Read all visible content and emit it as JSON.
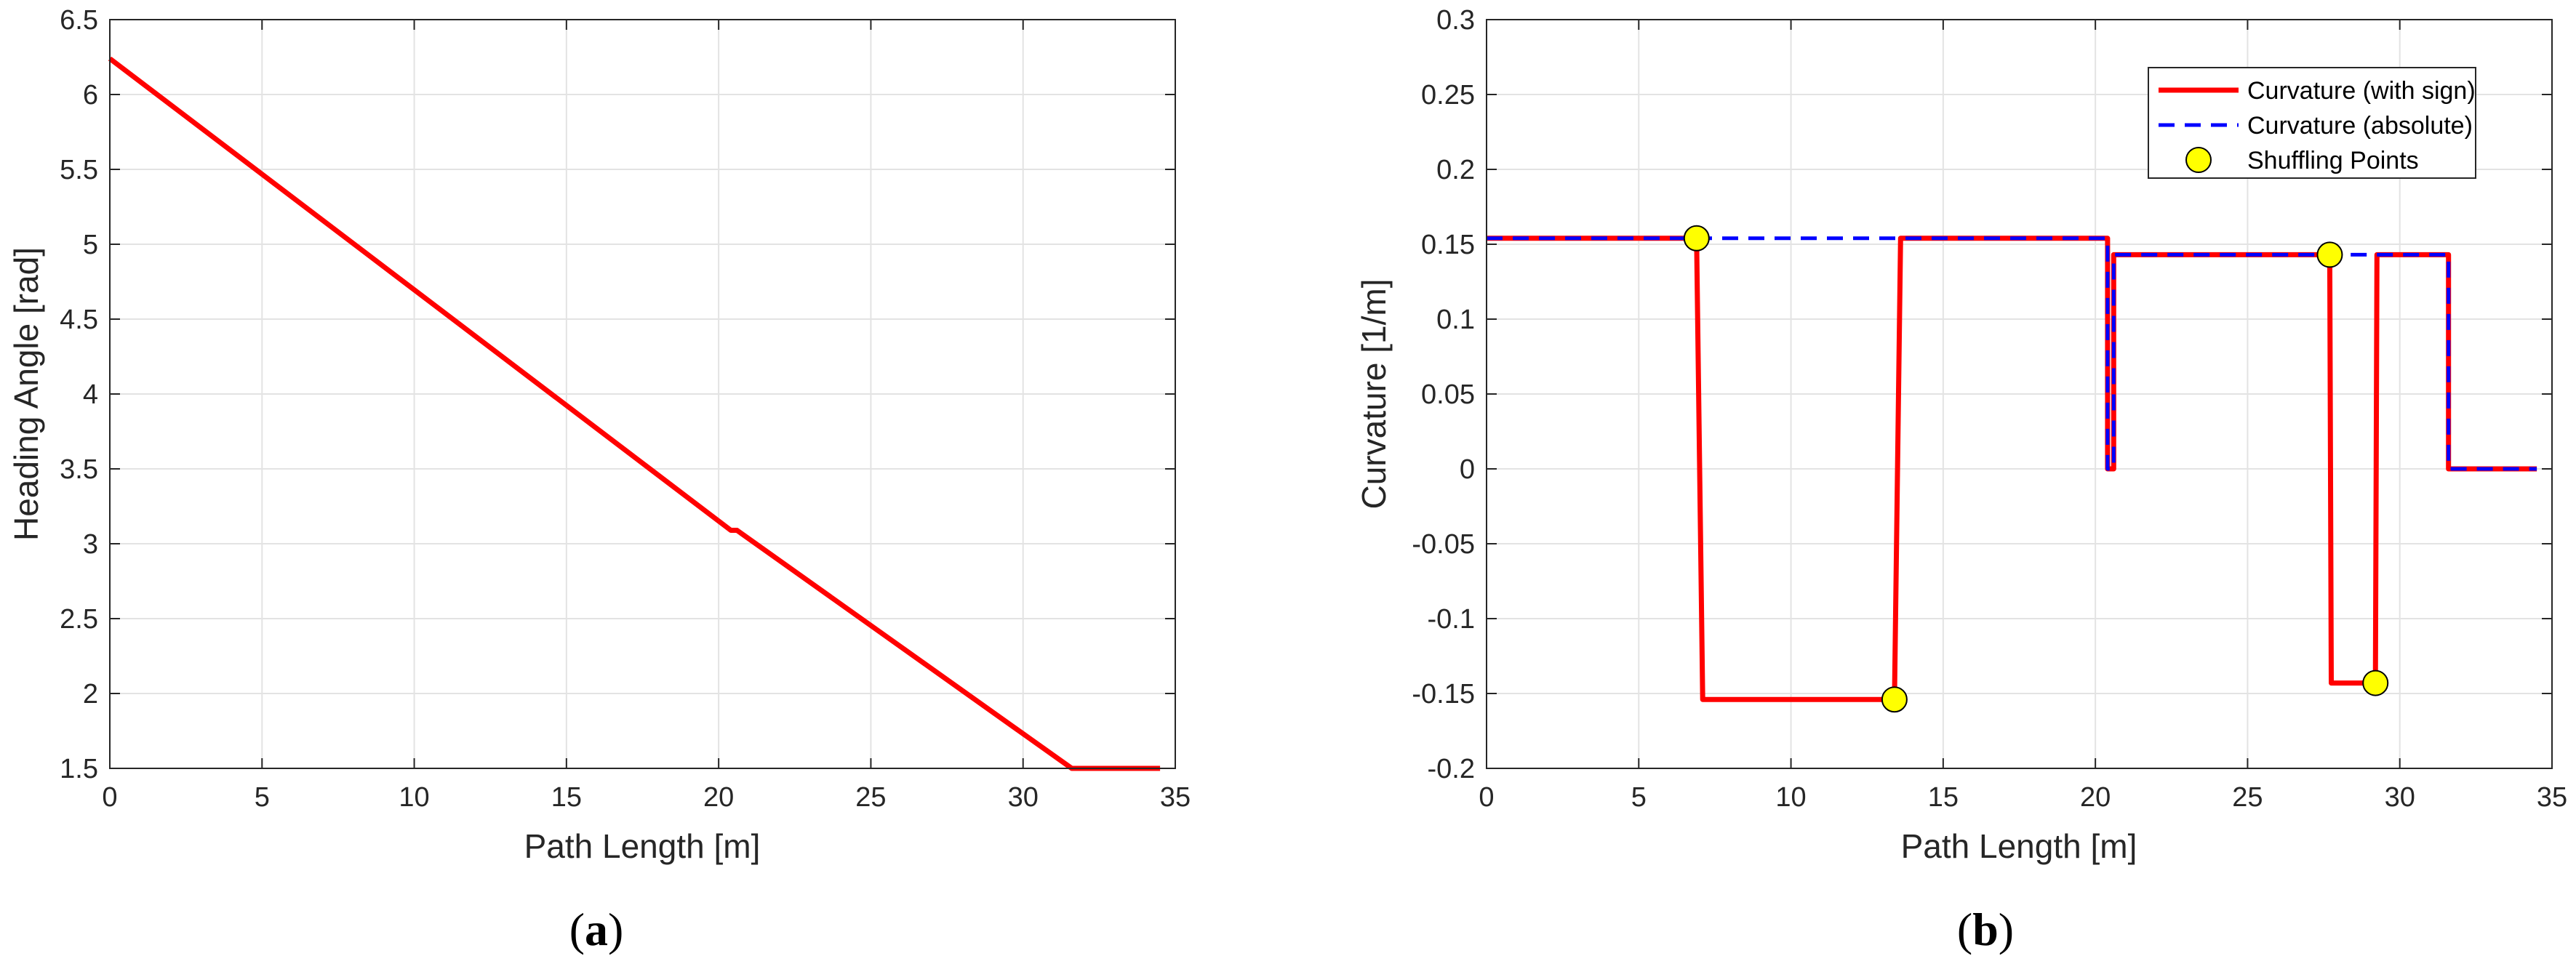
{
  "chart_data": [
    {
      "type": "line",
      "caption": "(a)",
      "caption_letter": "a",
      "xlabel": "Path Length [m]",
      "ylabel": "Heading Angle [rad]",
      "xlim": [
        0,
        35
      ],
      "ylim": [
        1.5,
        6.5
      ],
      "xticks": [
        0,
        5,
        10,
        15,
        20,
        25,
        30,
        35
      ],
      "yticks": [
        1.5,
        2,
        2.5,
        3,
        3.5,
        4,
        4.5,
        5,
        5.5,
        6,
        6.5
      ],
      "xtick_labels": [
        "0",
        "5",
        "10",
        "15",
        "20",
        "25",
        "30",
        "35"
      ],
      "ytick_labels": [
        "1.5",
        "2",
        "2.5",
        "3",
        "3.5",
        "4",
        "4.5",
        "5",
        "5.5",
        "6",
        "6.5"
      ],
      "grid": true,
      "series": [
        {
          "color": "#ff0000",
          "style": "solid",
          "x": [
            0,
            20.4,
            20.6,
            31.6,
            34.5
          ],
          "y": [
            6.24,
            3.09,
            3.09,
            1.5,
            1.5
          ]
        }
      ]
    },
    {
      "type": "line",
      "caption": "(b)",
      "caption_letter": "b",
      "xlabel": "Path Length [m]",
      "ylabel": "Curvature [1/m]",
      "xlim": [
        0,
        35
      ],
      "ylim": [
        -0.2,
        0.3
      ],
      "xticks": [
        0,
        5,
        10,
        15,
        20,
        25,
        30,
        35
      ],
      "yticks": [
        -0.2,
        -0.15,
        -0.1,
        -0.05,
        0,
        0.05,
        0.1,
        0.15,
        0.2,
        0.25,
        0.3
      ],
      "xtick_labels": [
        "0",
        "5",
        "10",
        "15",
        "20",
        "25",
        "30",
        "35"
      ],
      "ytick_labels": [
        "-0.2",
        "-0.15",
        "-0.1",
        "-0.05",
        "0",
        "0.05",
        "0.1",
        "0.15",
        "0.2",
        "0.25",
        "0.3"
      ],
      "grid": true,
      "legend_position": "top-right",
      "series": [
        {
          "name": "Curvature (absolute)",
          "color": "#0000ff",
          "style": "dashed",
          "x": [
            0,
            20.4,
            20.4,
            20.6,
            20.6,
            31.6,
            31.6,
            34.5
          ],
          "y": [
            0.154,
            0.154,
            0,
            0,
            0.143,
            0.143,
            0,
            0
          ]
        },
        {
          "name": "Curvature (with sign)",
          "color": "#ff0000",
          "style": "solid",
          "x": [
            0,
            6.9,
            7.1,
            13.4,
            13.6,
            20.4,
            20.4,
            20.6,
            20.6,
            27.7,
            27.75,
            29.2,
            29.25,
            31.6,
            31.6,
            34.5
          ],
          "y": [
            0.154,
            0.154,
            -0.154,
            -0.154,
            0.154,
            0.154,
            0,
            0,
            0.143,
            0.143,
            -0.143,
            -0.143,
            0.143,
            0.143,
            0,
            0
          ]
        },
        {
          "name": "Shuffling Points",
          "color": "#ffff00",
          "style": "markers",
          "x": [
            6.9,
            13.4,
            27.7,
            29.2
          ],
          "y": [
            0.154,
            -0.154,
            0.143,
            -0.143
          ]
        }
      ],
      "legend_order": [
        "Curvature (with sign)",
        "Curvature (absolute)",
        "Shuffling Points"
      ]
    }
  ]
}
